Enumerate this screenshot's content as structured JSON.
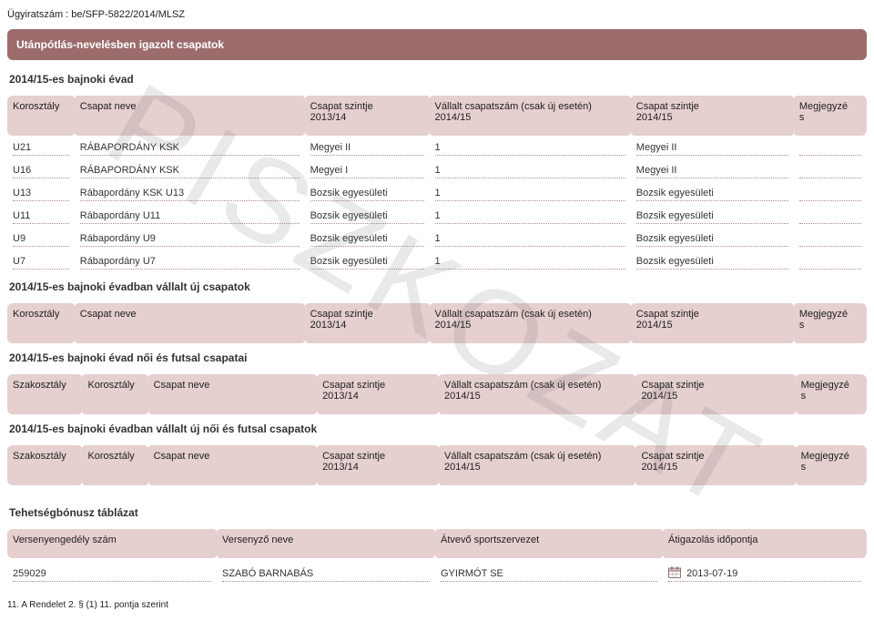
{
  "watermark": "PISZKOZAT",
  "doc_number_line": "Ügyiratszám : be/SFP-5822/2014/MLSZ",
  "section_certified_title": "Utánpótlás-nevelésben igazolt csapatok",
  "section_year_title": "2014/15-es bajnoki évad",
  "section_new_title": "2014/15-es bajnoki évadban vállalt új csapatok",
  "section_women_title": "2014/15-es bajnoki évad női és futsal csapatai",
  "section_women_new_title": "2014/15-es bajnoki évadban vállalt új női és futsal csapatok",
  "section_talent_title": "Tehetségbónusz táblázat",
  "headers": {
    "kor": "Korosztály",
    "csapat": "Csapat neve",
    "szintje1314": "Csapat szintje\n2013/14",
    "vallalt": "Vállalt csapatszám (csak új esetén)\n2014/15",
    "szintje1415": "Csapat szintje\n2014/15",
    "megj": "Megjegyzé\ns",
    "szak": "Szakosztály"
  },
  "teams": [
    {
      "kor": "U21",
      "nev": "RÁBAPORDÁNY KSK",
      "sz13": "Megyei II",
      "vcs": "1",
      "sz14": "Megyei II",
      "meg": ""
    },
    {
      "kor": "U16",
      "nev": "RÁBAPORDÁNY KSK",
      "sz13": "Megyei I",
      "vcs": "1",
      "sz14": "Megyei II",
      "meg": ""
    },
    {
      "kor": "U13",
      "nev": "Rábapordány KSK U13",
      "sz13": "Bozsik egyesületi",
      "vcs": "1",
      "sz14": "Bozsik egyesületi",
      "meg": ""
    },
    {
      "kor": "U11",
      "nev": "Rábapordány U11",
      "sz13": "Bozsik egyesületi",
      "vcs": "1",
      "sz14": "Bozsik egyesületi",
      "meg": ""
    },
    {
      "kor": "U9",
      "nev": "Rábapordány U9",
      "sz13": "Bozsik egyesületi",
      "vcs": "1",
      "sz14": "Bozsik egyesületi",
      "meg": ""
    },
    {
      "kor": "U7",
      "nev": "Rábapordány U7",
      "sz13": "Bozsik egyesületi",
      "vcs": "1",
      "sz14": "Bozsik egyesületi",
      "meg": ""
    }
  ],
  "talent_headers": {
    "c1": "Versenyengedély szám",
    "c2": "Versenyző neve",
    "c3": "Átvevő sportszervezet",
    "c4": "Átigazolás időpontja"
  },
  "talent_row": {
    "c1": "259029",
    "c2": "SZABÓ BARNABÁS",
    "c3": "GYIRMÓT SE",
    "c4": "2013-07-19"
  },
  "footnote": "11. A Rendelet 2. § (1) 11. pontja szerint"
}
